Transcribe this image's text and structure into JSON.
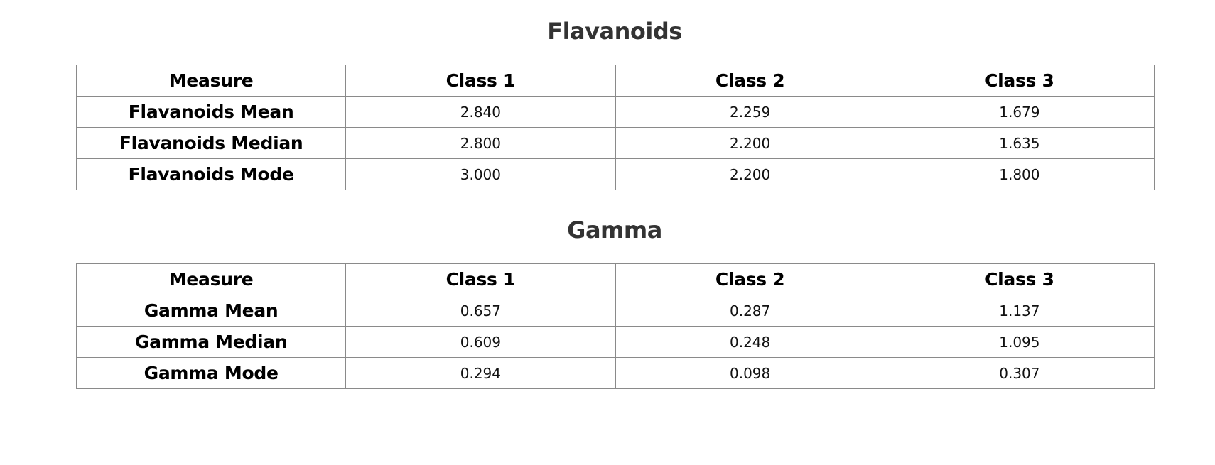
{
  "sections": [
    {
      "title": "Flavanoids",
      "headers": [
        "Measure",
        "Class 1",
        "Class 2",
        "Class 3"
      ],
      "rows": [
        {
          "label": "Flavanoids Mean",
          "values": [
            "2.840",
            "2.259",
            "1.679"
          ]
        },
        {
          "label": "Flavanoids Median",
          "values": [
            "2.800",
            "2.200",
            "1.635"
          ]
        },
        {
          "label": "Flavanoids Mode",
          "values": [
            "3.000",
            "2.200",
            "1.800"
          ]
        }
      ]
    },
    {
      "title": "Gamma",
      "headers": [
        "Measure",
        "Class 1",
        "Class 2",
        "Class 3"
      ],
      "rows": [
        {
          "label": "Gamma Mean",
          "values": [
            "0.657",
            "0.287",
            "1.137"
          ]
        },
        {
          "label": "Gamma Median",
          "values": [
            "0.609",
            "0.248",
            "1.095"
          ]
        },
        {
          "label": "Gamma Mode",
          "values": [
            "0.294",
            "0.098",
            "0.307"
          ]
        }
      ]
    }
  ]
}
